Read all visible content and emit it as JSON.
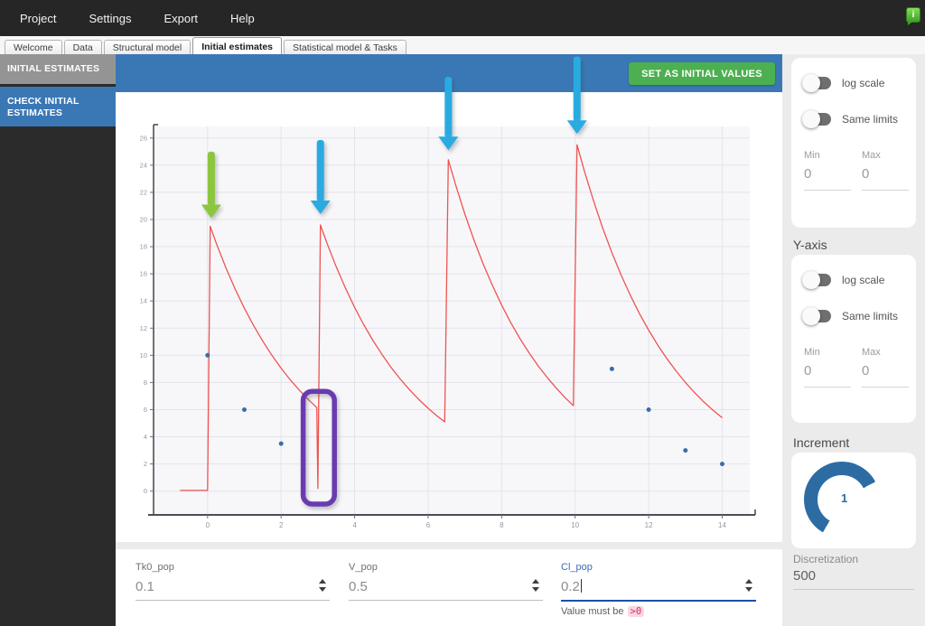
{
  "menubar": {
    "items": [
      {
        "label": "Project"
      },
      {
        "label": "Settings"
      },
      {
        "label": "Export"
      },
      {
        "label": "Help"
      }
    ]
  },
  "notification": {
    "icon": "green-message-bubble",
    "glyph": "i"
  },
  "tabbar": {
    "tabs": [
      {
        "label": "Welcome",
        "active": false
      },
      {
        "label": "Data",
        "active": false
      },
      {
        "label": "Structural model",
        "active": false
      },
      {
        "label": "Initial estimates",
        "active": true
      },
      {
        "label": "Statistical model & Tasks",
        "active": false
      }
    ]
  },
  "sidebar": {
    "items": [
      {
        "label": "INITIAL ESTIMATES"
      },
      {
        "label_line1": "CHECK INITIAL",
        "label_line2": "ESTIMATES"
      }
    ]
  },
  "toolbar": {
    "set_initial_values_label": "SET AS INITIAL VALUES"
  },
  "x_axis_panel": {
    "log_scale_label": "log scale",
    "same_limits_label": "Same limits",
    "min_label": "Min",
    "max_label": "Max",
    "min_value": "0",
    "max_value": "0"
  },
  "y_axis_panel": {
    "heading": "Y-axis",
    "log_scale_label": "log scale",
    "same_limits_label": "Same limits",
    "min_label": "Min",
    "max_label": "Max",
    "min_value": "0",
    "max_value": "0"
  },
  "increment_panel": {
    "heading": "Increment",
    "knob_value": "1"
  },
  "discretization": {
    "label": "Discretization",
    "value": "500"
  },
  "parameters": {
    "fields": [
      {
        "name": "Tk0_pop",
        "value": "0.1"
      },
      {
        "name": "V_pop",
        "value": "0.5"
      },
      {
        "name": "Cl_pop",
        "value": "0.2",
        "focused": true,
        "error_text": "Value must be",
        "error_badge": ">0"
      }
    ]
  },
  "colors": {
    "header_blue": "#3a78b5",
    "button_green": "#4caf50",
    "sidebar_gray": "#949494",
    "curve_red": "#ef5350",
    "dot_blue": "#3a6ea8",
    "arrow_green": "#8cc63f",
    "arrow_blue": "#29abe2",
    "highlight_purple": "#6a3bb0"
  },
  "chart_data": {
    "type": "line",
    "title": "",
    "xlabel": "",
    "ylabel": "",
    "xlim": [
      -1.47,
      14.75
    ],
    "ylim": [
      -1.75,
      26.85
    ],
    "x_ticks": [
      0,
      2,
      4,
      6,
      8,
      10,
      12,
      14
    ],
    "y_ticks": [
      0,
      2,
      4,
      6,
      8,
      10,
      12,
      14,
      16,
      18,
      20,
      22,
      24,
      26
    ],
    "grid": true,
    "series": [
      {
        "name": "model-prediction",
        "color": "#ef5350",
        "points": [
          [
            -0.75,
            0.05
          ],
          [
            0,
            0.05
          ],
          [
            0.07,
            19.5
          ],
          [
            0.25,
            18.15
          ],
          [
            0.5,
            16.43
          ],
          [
            0.75,
            14.88
          ],
          [
            1,
            13.47
          ],
          [
            1.25,
            12.2
          ],
          [
            1.5,
            11.04
          ],
          [
            1.75,
            10.0
          ],
          [
            2,
            9.05
          ],
          [
            2.25,
            8.19
          ],
          [
            2.5,
            7.42
          ],
          [
            2.75,
            6.72
          ],
          [
            2.97,
            6.15
          ],
          [
            3.0,
            0.2
          ],
          [
            3.07,
            19.6
          ],
          [
            3.25,
            18.24
          ],
          [
            3.5,
            16.52
          ],
          [
            3.75,
            14.95
          ],
          [
            4,
            13.53
          ],
          [
            4.25,
            12.25
          ],
          [
            4.5,
            11.09
          ],
          [
            4.75,
            10.04
          ],
          [
            5,
            9.08
          ],
          [
            5.25,
            8.23
          ],
          [
            5.5,
            7.45
          ],
          [
            5.75,
            6.74
          ],
          [
            6,
            6.1
          ],
          [
            6.25,
            5.52
          ],
          [
            6.45,
            5.1
          ],
          [
            6.55,
            24.4
          ],
          [
            6.75,
            22.53
          ],
          [
            7,
            20.4
          ],
          [
            7.25,
            18.47
          ],
          [
            7.5,
            16.71
          ],
          [
            7.75,
            15.14
          ],
          [
            8,
            13.7
          ],
          [
            8.25,
            12.4
          ],
          [
            8.5,
            11.22
          ],
          [
            8.75,
            10.16
          ],
          [
            9,
            9.2
          ],
          [
            9.25,
            8.33
          ],
          [
            9.5,
            7.54
          ],
          [
            9.75,
            6.82
          ],
          [
            9.95,
            6.3
          ],
          [
            10.05,
            25.5
          ],
          [
            10.25,
            23.57
          ],
          [
            10.5,
            21.37
          ],
          [
            10.75,
            19.37
          ],
          [
            11,
            17.55
          ],
          [
            11.25,
            15.91
          ],
          [
            11.5,
            14.42
          ],
          [
            11.75,
            13.07
          ],
          [
            12,
            11.85
          ],
          [
            12.25,
            10.74
          ],
          [
            12.5,
            9.74
          ],
          [
            12.75,
            8.83
          ],
          [
            13,
            8.0
          ],
          [
            13.25,
            7.25
          ],
          [
            13.5,
            6.57
          ],
          [
            13.75,
            5.96
          ],
          [
            14,
            5.4
          ]
        ]
      }
    ],
    "scatter": {
      "name": "observed-data",
      "color": "#3a6ea8",
      "radius": 2.5,
      "points": [
        [
          0,
          10
        ],
        [
          1,
          6
        ],
        [
          2,
          3.5
        ],
        [
          11,
          9
        ],
        [
          12,
          6
        ],
        [
          13,
          3
        ],
        [
          14,
          2
        ]
      ]
    },
    "annotations": {
      "arrows": [
        {
          "name": "dose-arrow-1",
          "color": "#8cc63f",
          "x": 0.1,
          "tip_y": 20.1,
          "top_y": 25.0
        },
        {
          "name": "dose-arrow-2",
          "color": "#29abe2",
          "x": 3.07,
          "tip_y": 20.4,
          "top_y": 25.85
        },
        {
          "name": "dose-arrow-3",
          "color": "#29abe2",
          "x": 6.55,
          "tip_y": 25.1,
          "top_y": 30.5
        },
        {
          "name": "dose-arrow-4",
          "color": "#29abe2",
          "x": 10.05,
          "tip_y": 26.3,
          "top_y": 32.0
        }
      ],
      "highlight_box": {
        "color": "#6a3bb0",
        "x0": 2.6,
        "x1": 3.45,
        "y0": -0.95,
        "y1": 7.35
      }
    }
  }
}
